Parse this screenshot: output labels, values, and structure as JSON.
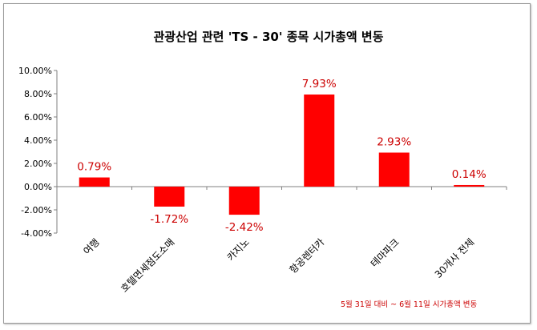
{
  "chart_data": {
    "type": "bar",
    "title": "관광산업 관련 'TS - 30' 종목 시가총액 변동",
    "categories": [
      "여행",
      "호텔면세점도소매",
      "카지노",
      "항공렌터카",
      "테마파크",
      "30개사 전체"
    ],
    "values": [
      0.79,
      -1.72,
      -2.42,
      7.93,
      2.93,
      0.14
    ],
    "data_labels": [
      "0.79%",
      "-1.72%",
      "-2.42%",
      "7.93%",
      "2.93%",
      "0.14%"
    ],
    "yticks": [
      "10.00%",
      "8.00%",
      "6.00%",
      "4.00%",
      "2.00%",
      "0.00%",
      "-2.00%",
      "-4.00%"
    ],
    "ytick_values": [
      10,
      8,
      6,
      4,
      2,
      0,
      -2,
      -4
    ],
    "ylim": [
      -4,
      10
    ],
    "xlabel": "",
    "ylabel": "",
    "grid": false,
    "bar_color": "#ff0000",
    "label_color": "#cc0000",
    "footnote": "5월 31일 대비 ~ 6월 11일 시가총액 변동"
  }
}
